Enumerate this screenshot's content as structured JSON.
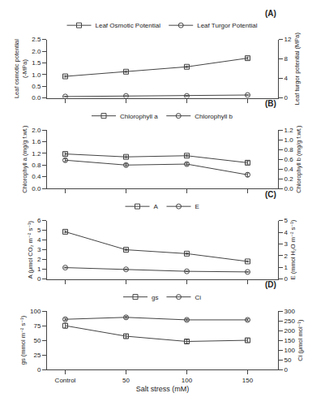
{
  "chart_data": [
    {
      "type": "line",
      "title": "(A)",
      "x": [
        0,
        50,
        100,
        150
      ],
      "y_label": "Leaf osmotic potential\n(-MPa)",
      "y2_label": "Leaf turgor potential (MPa)",
      "xlim": [
        -15,
        175
      ],
      "xticks": [
        0,
        50,
        100,
        150
      ],
      "ylim": [
        0,
        2.5
      ],
      "yticks": [
        {
          "value": 0,
          "label": "0.0"
        },
        0.5,
        {
          "value": 1.0,
          "label": "1.0"
        },
        1.5,
        {
          "value": 2.0,
          "label": "2.0"
        },
        2.5
      ],
      "y2lim": [
        0,
        12
      ],
      "y2ticks": [
        0,
        4,
        8,
        12
      ],
      "grid": false,
      "legend": "top",
      "tick_labels": "y",
      "series": [
        {
          "name": "Leaf Osmotic Potential",
          "color": "#444444",
          "marker": "square",
          "values": [
            0.92,
            1.12,
            1.33,
            1.7
          ],
          "errors": [
            0.03,
            0.03,
            0.03,
            0.05
          ]
        },
        {
          "name": "Leaf Turgor Potential",
          "color": "#444444",
          "marker": "circle",
          "axis": "y2",
          "values": [
            0.27,
            0.38,
            0.38,
            0.58
          ],
          "errors": [
            0.02,
            0.02,
            0.02,
            0.03
          ]
        }
      ]
    },
    {
      "type": "line",
      "title": "(B)",
      "x": [
        0,
        50,
        100,
        150
      ],
      "y_label": "Chlorophyll a (mg/g f.wt.)",
      "y2_label": "Chlorophyll b (mg/g f.wt.)",
      "xlim": [
        -15,
        175
      ],
      "xticks": [
        0,
        50,
        100,
        150
      ],
      "ylim": [
        0,
        2.0
      ],
      "yticks": [
        {
          "value": 0,
          "label": "0.0"
        },
        0.4,
        0.8,
        1.2,
        1.6,
        {
          "value": 2.0,
          "label": "2.0"
        }
      ],
      "y2lim": [
        0,
        1.2
      ],
      "y2ticks": [
        {
          "value": 0,
          "label": "0.0"
        },
        0.2,
        0.4,
        0.6,
        0.8,
        {
          "value": 1.0,
          "label": "1.0"
        },
        1.2
      ],
      "grid": false,
      "legend": "top",
      "tick_labels": "y",
      "series": [
        {
          "name": "Chlorophyll a",
          "color": "#444444",
          "marker": "square",
          "values": [
            1.18,
            1.08,
            1.12,
            0.88
          ],
          "errors": [
            0.04,
            0.03,
            0.03,
            0.05
          ]
        },
        {
          "name": "Chlorophyll b",
          "color": "#444444",
          "marker": "circle",
          "axis": "y2",
          "values": [
            0.58,
            0.48,
            0.5,
            0.28
          ],
          "errors": [
            0.03,
            0.03,
            0.03,
            0.04
          ]
        }
      ]
    },
    {
      "type": "line",
      "title": "(C)",
      "x": [
        0,
        50,
        100,
        150
      ],
      "y_label": "A (μmol CO₂ m⁻² s⁻¹)",
      "y2_label": "E (mmol H₂O m⁻² s⁻¹)",
      "xlim": [
        -15,
        175
      ],
      "xticks": [
        0,
        50,
        100,
        150
      ],
      "ylim": [
        0,
        6
      ],
      "yticks": [
        0,
        1,
        2,
        3,
        4,
        5,
        6
      ],
      "y2lim": [
        0,
        5
      ],
      "y2ticks": [
        0,
        1,
        2,
        3,
        4,
        5
      ],
      "grid": false,
      "legend": "top",
      "tick_labels": "y",
      "series": [
        {
          "name": "A",
          "color": "#444444",
          "marker": "square",
          "values": [
            4.85,
            3.0,
            2.6,
            1.8
          ],
          "errors": [
            0.1,
            0.08,
            0.07,
            0.06
          ]
        },
        {
          "name": "E",
          "color": "#444444",
          "marker": "circle",
          "axis": "y2",
          "values": [
            0.97,
            0.82,
            0.65,
            0.6
          ],
          "errors": [
            0.03,
            0.03,
            0.02,
            0.02
          ]
        }
      ]
    },
    {
      "type": "line",
      "title": "(D)",
      "x": [
        0,
        50,
        100,
        150
      ],
      "x_label": "Salt stress (mM)",
      "y_label": "gs (mmol m⁻² s⁻¹)",
      "y2_label": "Ci (μmol mol⁻¹)",
      "xlim": [
        -15,
        175
      ],
      "xticks": [
        {
          "value": 0,
          "label": "Control"
        },
        50,
        100,
        150
      ],
      "ylim": [
        0,
        100
      ],
      "yticks": [
        0,
        25,
        50,
        75,
        100
      ],
      "y2lim": [
        0,
        300
      ],
      "y2ticks": [
        0,
        50,
        100,
        150,
        200,
        250,
        300
      ],
      "grid": false,
      "legend": "top",
      "series": [
        {
          "name": "gs",
          "color": "#444444",
          "marker": "square",
          "values": [
            75,
            57,
            48,
            50
          ],
          "errors": [
            4,
            3,
            3,
            3
          ]
        },
        {
          "name": "Ci",
          "color": "#444444",
          "marker": "circle",
          "axis": "y2",
          "values": [
            258,
            268,
            255,
            255
          ],
          "errors": [
            5,
            5,
            5,
            5
          ]
        }
      ]
    }
  ]
}
